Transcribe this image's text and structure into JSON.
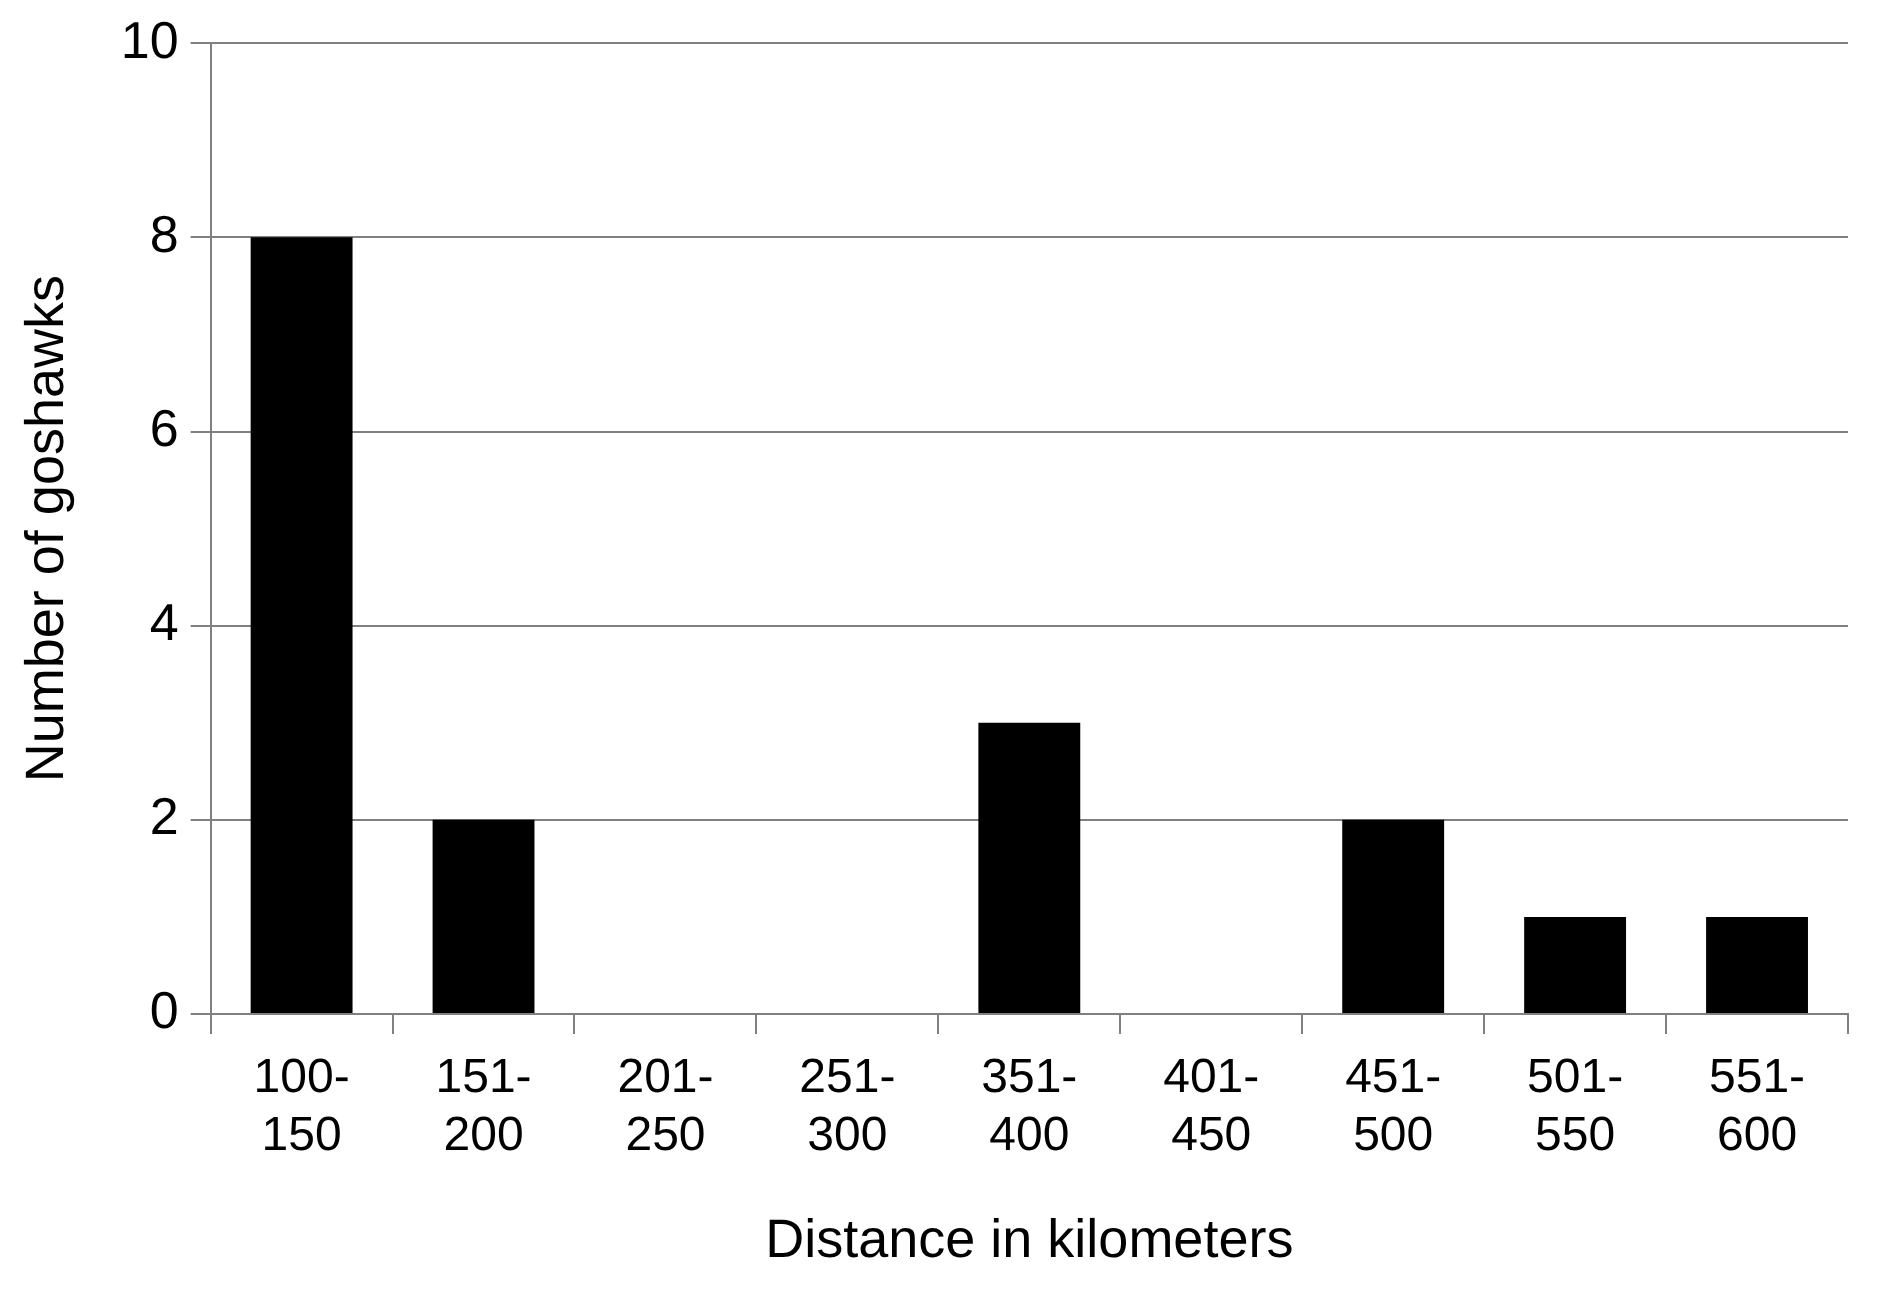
{
  "chart_data": {
    "type": "bar",
    "xlabel": "Distance in kilometers",
    "ylabel": "Number of goshawks",
    "categories": [
      "100-\n150",
      "151-\n200",
      "201-\n250",
      "251-\n300",
      "351-\n400",
      "401-\n450",
      "451-\n500",
      "501-\n550",
      "551-\n600"
    ],
    "values": [
      8,
      2,
      0,
      0,
      3,
      0,
      2,
      1,
      1
    ],
    "color": "#000000",
    "ylim": [
      0,
      10
    ],
    "yticks": [
      0,
      2,
      4,
      6,
      8,
      10
    ],
    "grid": "y",
    "legend": false
  }
}
